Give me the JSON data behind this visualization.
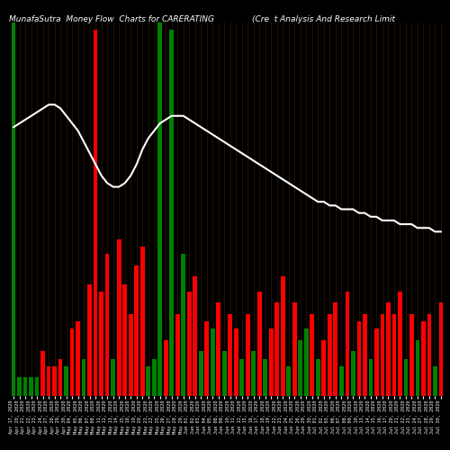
{
  "title_left": "MunafaSutra  Money Flow  Charts for CARERATING",
  "title_right": "(Cre  t Analysis And Research Limit",
  "bg_color": "#000000",
  "bar_colors": [
    "green",
    "green",
    "green",
    "green",
    "green",
    "red",
    "red",
    "red",
    "red",
    "green",
    "red",
    "red",
    "green",
    "red",
    "red",
    "red",
    "red",
    "green",
    "red",
    "red",
    "red",
    "red",
    "red",
    "green",
    "green",
    "green",
    "red",
    "green",
    "red",
    "green",
    "red",
    "red",
    "green",
    "red",
    "green",
    "red",
    "green",
    "red",
    "red",
    "green",
    "red",
    "green",
    "red",
    "green",
    "red",
    "red",
    "red",
    "green",
    "red",
    "green",
    "green",
    "red",
    "green",
    "red",
    "red",
    "red",
    "green",
    "red",
    "green",
    "red",
    "red",
    "green",
    "red",
    "red",
    "red",
    "red",
    "red",
    "green",
    "red",
    "green",
    "red",
    "red",
    "green",
    "red"
  ],
  "bar_heights": [
    100,
    5,
    5,
    5,
    5,
    12,
    8,
    8,
    10,
    8,
    18,
    20,
    10,
    30,
    98,
    28,
    38,
    10,
    42,
    30,
    22,
    35,
    40,
    8,
    10,
    100,
    15,
    98,
    22,
    38,
    28,
    32,
    12,
    20,
    18,
    25,
    12,
    22,
    18,
    10,
    22,
    12,
    28,
    10,
    18,
    25,
    32,
    8,
    25,
    15,
    18,
    22,
    10,
    15,
    22,
    25,
    8,
    28,
    12,
    20,
    22,
    10,
    18,
    22,
    25,
    22,
    28,
    10,
    22,
    15,
    20,
    22,
    8,
    25
  ],
  "line_y_raw": [
    72,
    73,
    74,
    75,
    76,
    77,
    78,
    78,
    77,
    75,
    73,
    71,
    68,
    65,
    62,
    59,
    57,
    56,
    56,
    57,
    59,
    62,
    66,
    69,
    71,
    73,
    74,
    75,
    75,
    75,
    74,
    73,
    72,
    71,
    70,
    69,
    68,
    67,
    66,
    65,
    64,
    63,
    62,
    61,
    60,
    59,
    58,
    57,
    56,
    55,
    54,
    53,
    52,
    52,
    51,
    51,
    50,
    50,
    50,
    49,
    49,
    48,
    48,
    47,
    47,
    47,
    46,
    46,
    46,
    45,
    45,
    45,
    44,
    44
  ],
  "x_labels": [
    "Apr 17, 2020",
    "Apr 20, 2020",
    "Apr 21, 2020",
    "Apr 22, 2020",
    "Apr 23, 2020",
    "Apr 24, 2020",
    "Apr 27, 2020",
    "Apr 28, 2020",
    "Apr 29, 2020",
    "Apr 30, 2020",
    "May 04, 2020",
    "May 05, 2020",
    "May 06, 2020",
    "May 07, 2020",
    "May 08, 2020",
    "May 11, 2020",
    "May 12, 2020",
    "May 13, 2020",
    "May 14, 2020",
    "May 15, 2020",
    "May 18, 2020",
    "May 19, 2020",
    "May 20, 2020",
    "May 21, 2020",
    "May 22, 2020",
    "May 25, 2020",
    "May 26, 2020",
    "May 27, 2020",
    "May 28, 2020",
    "May 29, 2020",
    "Jun 01, 2020",
    "Jun 02, 2020",
    "Jun 03, 2020",
    "Jun 04, 2020",
    "Jun 05, 2020",
    "Jun 08, 2020",
    "Jun 09, 2020",
    "Jun 10, 2020",
    "Jun 11, 2020",
    "Jun 12, 2020",
    "Jun 15, 2020",
    "Jun 16, 2020",
    "Jun 17, 2020",
    "Jun 18, 2020",
    "Jun 19, 2020",
    "Jun 22, 2020",
    "Jun 23, 2020",
    "Jun 24, 2020",
    "Jun 25, 2020",
    "Jun 26, 2020",
    "Jun 29, 2020",
    "Jun 30, 2020",
    "Jul 01, 2020",
    "Jul 02, 2020",
    "Jul 03, 2020",
    "Jul 06, 2020",
    "Jul 07, 2020",
    "Jul 08, 2020",
    "Jul 09, 2020",
    "Jul 10, 2020",
    "Jul 13, 2020",
    "Jul 14, 2020",
    "Jul 15, 2020",
    "Jul 16, 2020",
    "Jul 17, 2020",
    "Jul 20, 2020",
    "Jul 21, 2020",
    "Jul 22, 2020",
    "Jul 23, 2020",
    "Jul 24, 2020",
    "Jul 27, 2020",
    "Jul 28, 2020",
    "Jul 29, 2020",
    "Jul 30, 2020"
  ],
  "line_color": "#ffffff",
  "line_width": 1.5,
  "bar_width": 0.7,
  "grid_color": "#3a1800",
  "title_fontsize": 6.5,
  "tick_fontsize": 3.8,
  "y_max": 100
}
